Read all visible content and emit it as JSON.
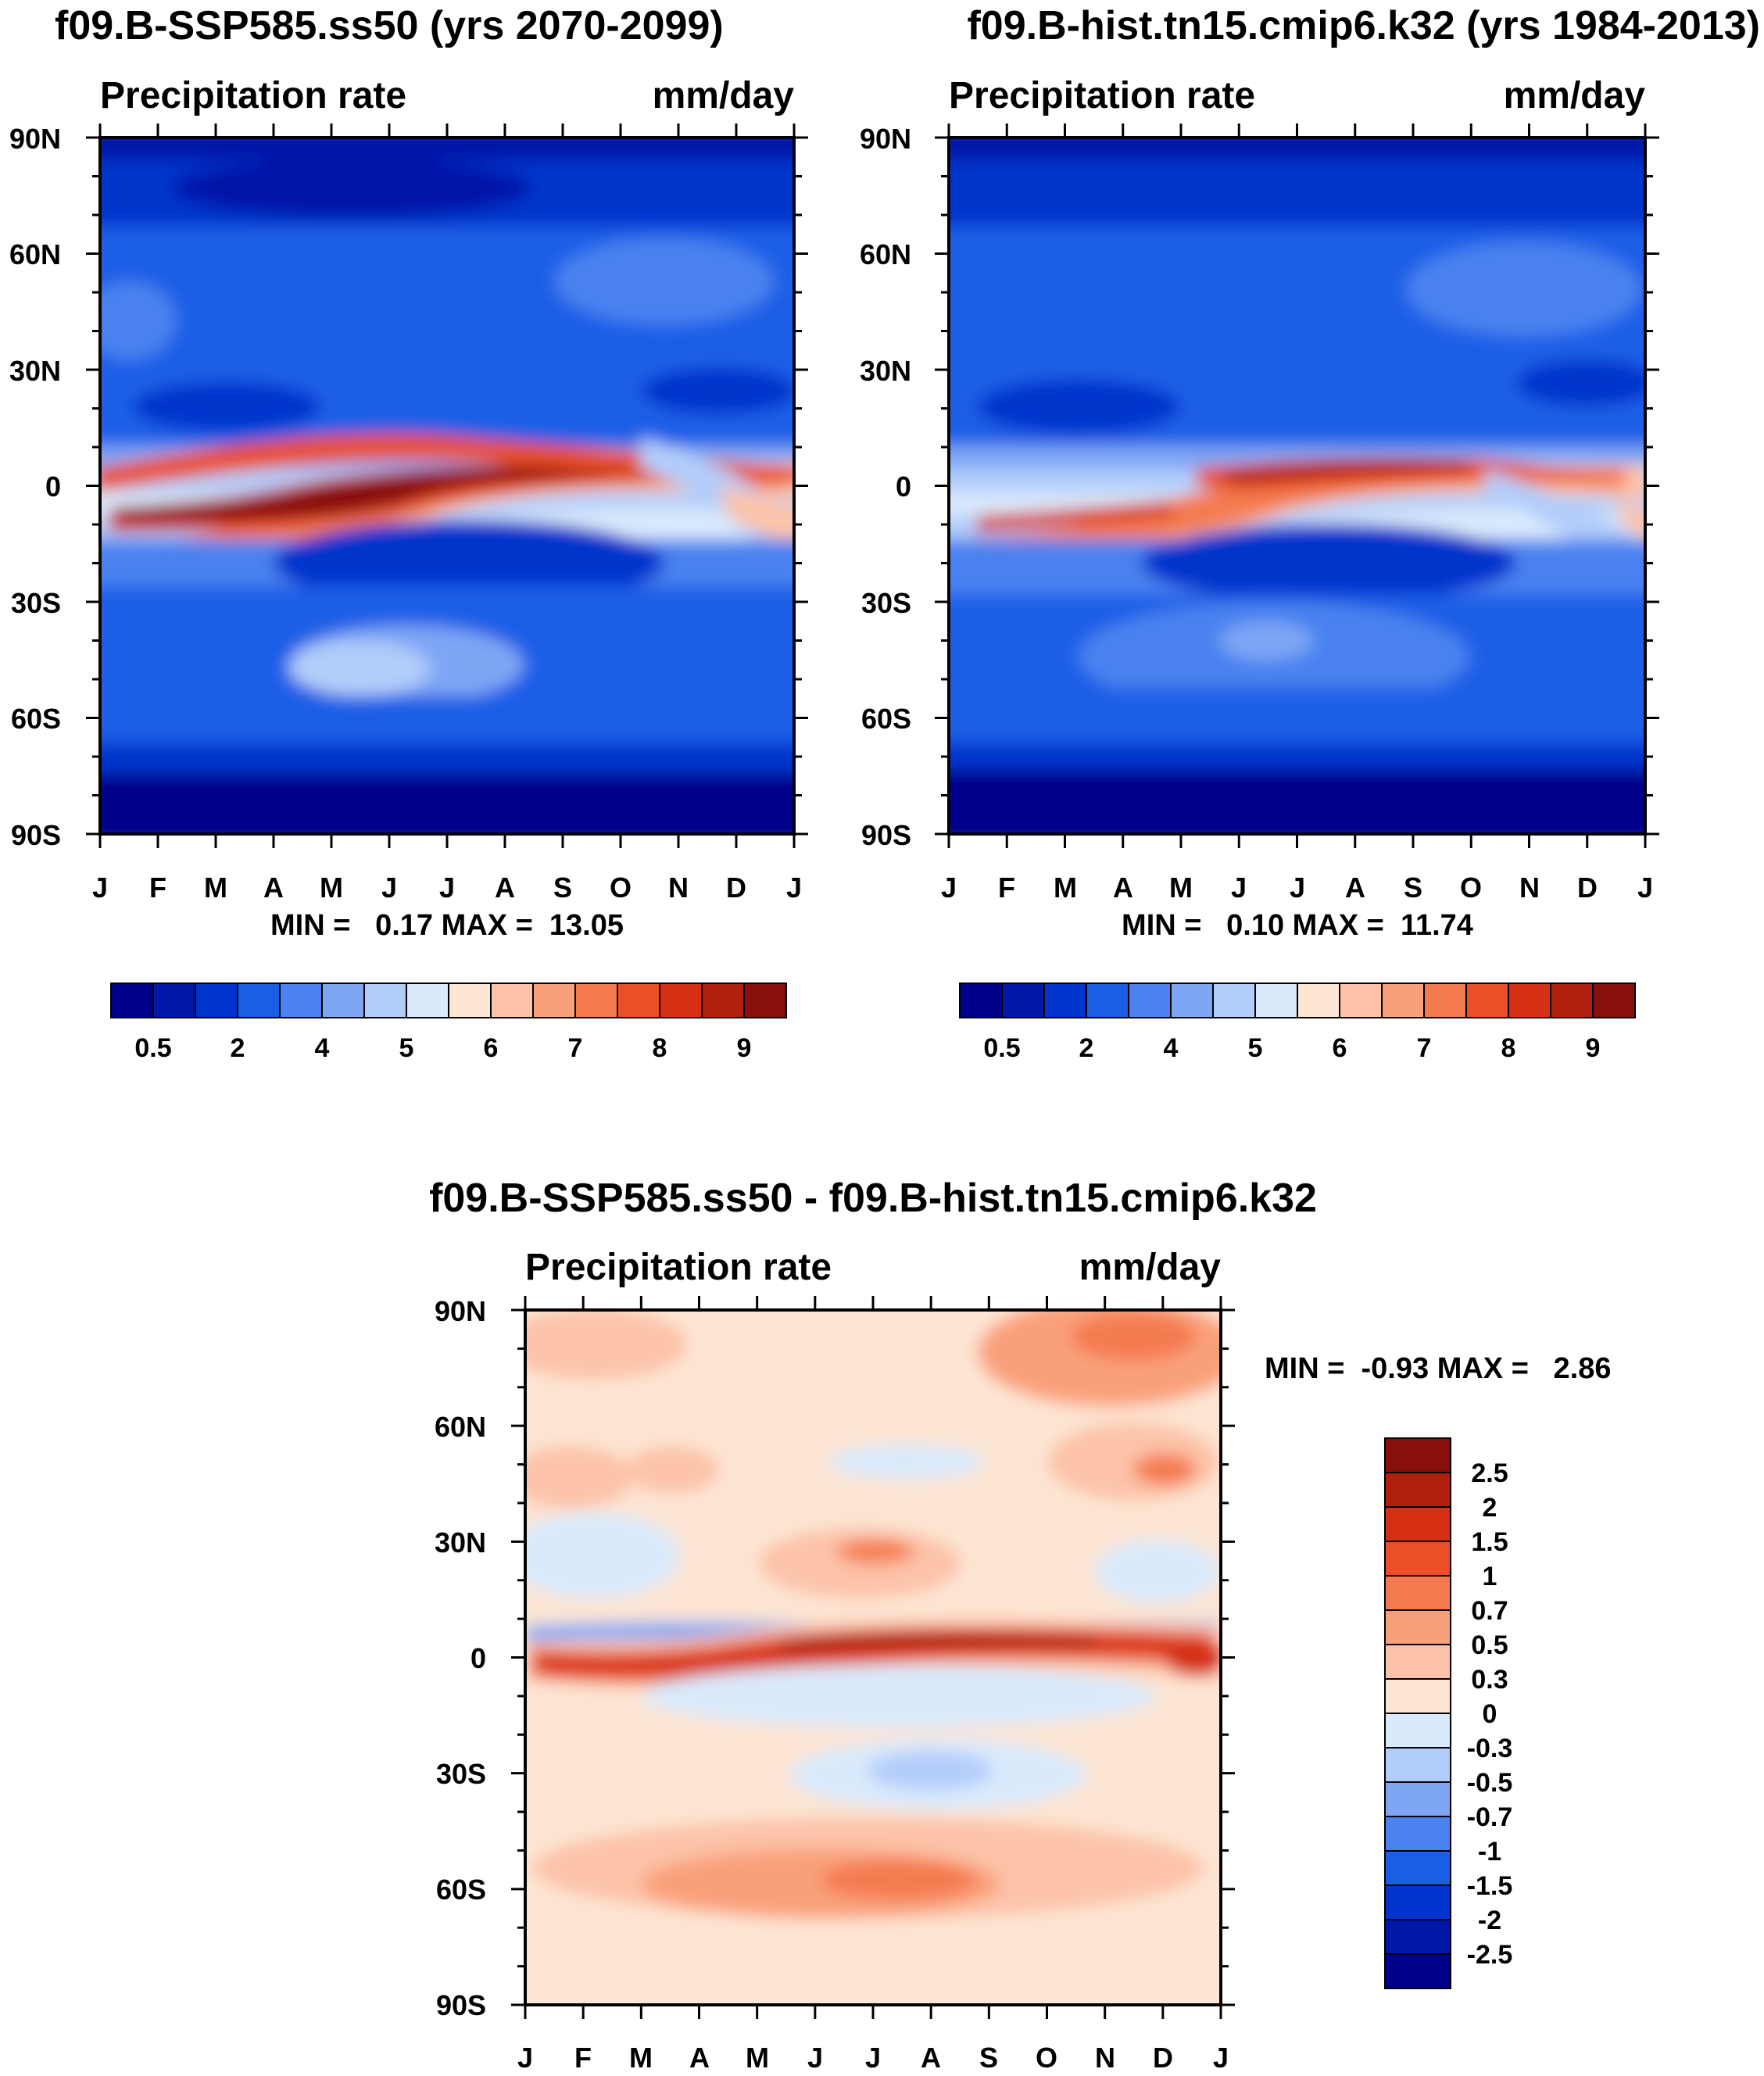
{
  "chart_data": [
    {
      "type": "heatmap",
      "title": "f09.B-SSP585.ss50 (yrs 2070-2099)",
      "left_label": "Precipitation rate",
      "right_label": "mm/day",
      "x_ticks": [
        "J",
        "F",
        "M",
        "A",
        "M",
        "J",
        "J",
        "A",
        "S",
        "O",
        "N",
        "D",
        "J"
      ],
      "y_ticks": [
        "90N",
        "60N",
        "30N",
        "0",
        "30S",
        "60S",
        "90S"
      ],
      "y_range": [
        -90,
        90
      ],
      "stats": "MIN =   0.17 MAX =  13.05",
      "min": 0.17,
      "max": 13.05,
      "colorbar": {
        "orientation": "horizontal",
        "labels": [
          "0.5",
          "2",
          "4",
          "5",
          "6",
          "7",
          "8",
          "9"
        ],
        "colors": [
          "#00008a",
          "#0018a8",
          "#0034cc",
          "#1a5ee6",
          "#4a82f0",
          "#7ea6f5",
          "#b2cdfa",
          "#d9eafc",
          "#fde5d3",
          "#fcc3a8",
          "#f9a07a",
          "#f47a50",
          "#ea4f26",
          "#d63015",
          "#b1200d",
          "#87100a"
        ]
      }
    },
    {
      "type": "heatmap",
      "title": "f09.B-hist.tn15.cmip6.k32 (yrs 1984-2013)",
      "left_label": "Precipitation rate",
      "right_label": "mm/day",
      "x_ticks": [
        "J",
        "F",
        "M",
        "A",
        "M",
        "J",
        "J",
        "A",
        "S",
        "O",
        "N",
        "D",
        "J"
      ],
      "y_ticks": [
        "90N",
        "60N",
        "30N",
        "0",
        "30S",
        "60S",
        "90S"
      ],
      "y_range": [
        -90,
        90
      ],
      "stats": "MIN =   0.10 MAX =  11.74",
      "min": 0.1,
      "max": 11.74,
      "colorbar": {
        "orientation": "horizontal",
        "labels": [
          "0.5",
          "2",
          "4",
          "5",
          "6",
          "7",
          "8",
          "9"
        ],
        "colors": [
          "#00008a",
          "#0018a8",
          "#0034cc",
          "#1a5ee6",
          "#4a82f0",
          "#7ea6f5",
          "#b2cdfa",
          "#d9eafc",
          "#fde5d3",
          "#fcc3a8",
          "#f9a07a",
          "#f47a50",
          "#ea4f26",
          "#d63015",
          "#b1200d",
          "#87100a"
        ]
      }
    },
    {
      "type": "heatmap",
      "title": "f09.B-SSP585.ss50 - f09.B-hist.tn15.cmip6.k32",
      "left_label": "Precipitation rate",
      "right_label": "mm/day",
      "x_ticks": [
        "J",
        "F",
        "M",
        "A",
        "M",
        "J",
        "J",
        "A",
        "S",
        "O",
        "N",
        "D",
        "J"
      ],
      "y_ticks": [
        "90N",
        "60N",
        "30N",
        "0",
        "30S",
        "60S",
        "90S"
      ],
      "y_range": [
        -90,
        90
      ],
      "stats": "MIN =  -0.93 MAX =   2.86",
      "min": -0.93,
      "max": 2.86,
      "colorbar": {
        "orientation": "vertical",
        "labels": [
          "2.5",
          "2",
          "1.5",
          "1",
          "0.7",
          "0.5",
          "0.3",
          "0",
          "-0.3",
          "-0.5",
          "-0.7",
          "-1",
          "-1.5",
          "-2",
          "-2.5"
        ],
        "colors": [
          "#87100a",
          "#b1200d",
          "#d63015",
          "#ea4f26",
          "#f47a50",
          "#f9a07a",
          "#fcc3a8",
          "#fde5d3",
          "#d9eafc",
          "#b2cdfa",
          "#7ea6f5",
          "#4a82f0",
          "#1a5ee6",
          "#0034cc",
          "#0018a8",
          "#00008a"
        ]
      }
    }
  ]
}
